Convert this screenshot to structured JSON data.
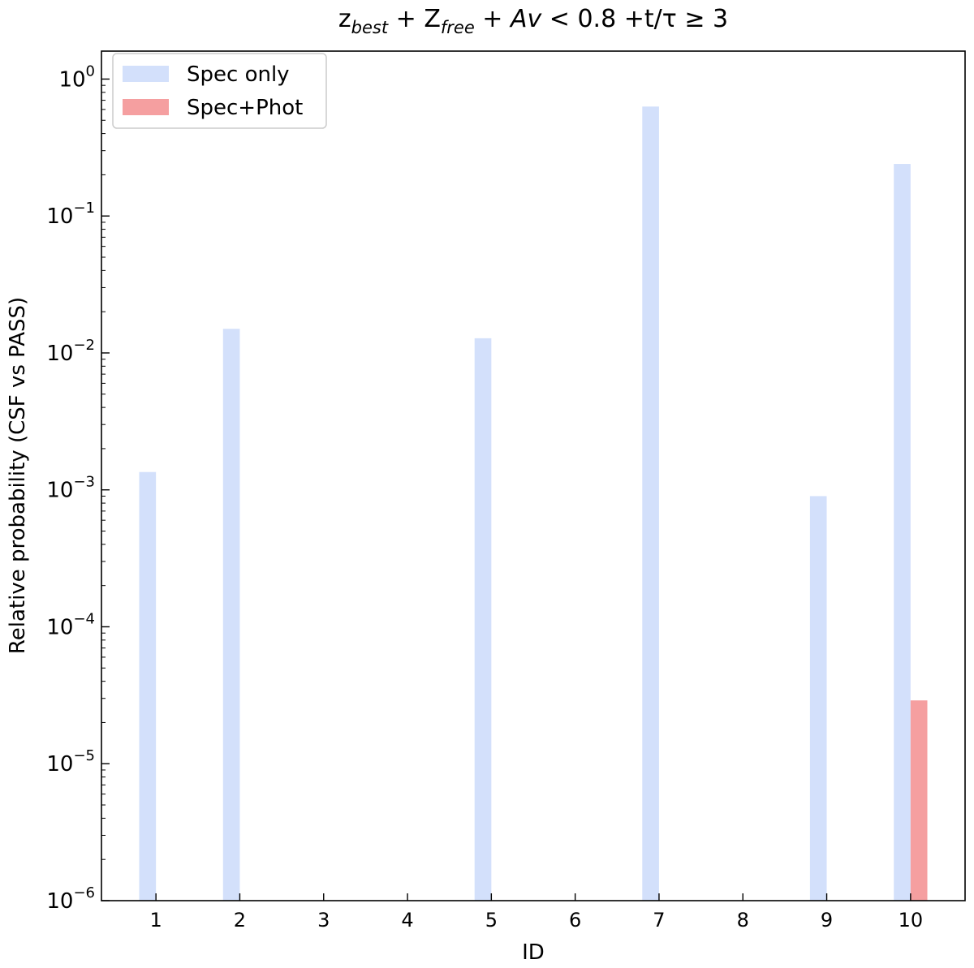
{
  "chart_data": {
    "type": "bar",
    "title": {
      "z_base": "z",
      "z_sub": "best",
      "plus1": " + ",
      "Z_base": "Z",
      "Z_sub": "free",
      "plus2": " + ",
      "av": "Av",
      "lt": " < ",
      "val": "0.8",
      "tail": " +t/τ  ≥  3"
    },
    "xlabel": "ID",
    "ylabel": "Relative probability (CSF vs PASS)",
    "yscale": "log",
    "ylim": [
      1e-06,
      1.6
    ],
    "xlim": [
      0.35,
      10.65
    ],
    "categories": [
      1,
      2,
      3,
      4,
      5,
      6,
      7,
      8,
      9,
      10
    ],
    "y_ticks": [
      {
        "value": 1e-06,
        "base": "10",
        "exp": "−6"
      },
      {
        "value": 1e-05,
        "base": "10",
        "exp": "−5"
      },
      {
        "value": 0.0001,
        "base": "10",
        "exp": "−4"
      },
      {
        "value": 0.001,
        "base": "10",
        "exp": "−3"
      },
      {
        "value": 0.01,
        "base": "10",
        "exp": "−2"
      },
      {
        "value": 0.1,
        "base": "10",
        "exp": "−1"
      },
      {
        "value": 1,
        "base": "10",
        "exp": "0"
      }
    ],
    "series": [
      {
        "name": "Spec only",
        "color": "#d3e0fb",
        "offset": -0.1,
        "values": [
          0.00135,
          0.015,
          null,
          null,
          0.0128,
          null,
          0.63,
          null,
          0.0009,
          0.24
        ]
      },
      {
        "name": "Spec+Phot",
        "color": "#f59fa0",
        "offset": 0.1,
        "values": [
          null,
          null,
          null,
          null,
          null,
          null,
          null,
          null,
          null,
          2.9e-05
        ]
      }
    ],
    "legend_position": "top-left",
    "bar_width": 0.2,
    "grid": false
  }
}
